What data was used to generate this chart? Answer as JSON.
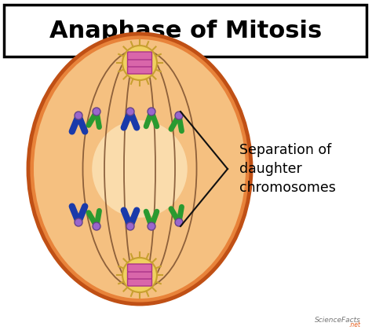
{
  "title": "Anaphase of Mitosis",
  "background_color": "#ffffff",
  "cell_outer_color": "#e8833a",
  "cell_inner_color": "#f5c080",
  "cell_center_color": "#fde8c0",
  "spindle_color": "#7B4F2E",
  "centrosome_fill": "#f0d060",
  "centrosome_border": "#c8a030",
  "spike_color": "#c8a030",
  "chromosome_blue": "#1a3aaa",
  "chromosome_green": "#2a9a30",
  "centromere_color": "#9966cc",
  "centromere_border": "#664488",
  "chromo_pink": "#d966aa",
  "chromo_pink_border": "#aa3388",
  "annotation_line_color": "#111111",
  "annotation_text": "Separation of\ndaughter\nchromosomes",
  "sciencefacts_text": "ScienceFacts",
  "fig_width": 4.74,
  "fig_height": 4.2,
  "dpi": 100
}
